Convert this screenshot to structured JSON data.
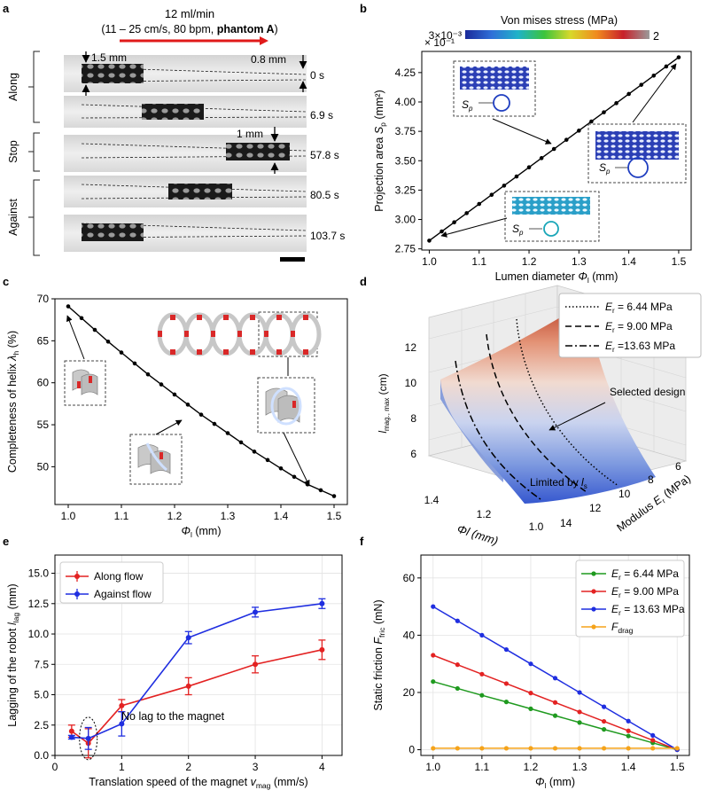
{
  "figure": {
    "panel_letters": [
      "a",
      "b",
      "c",
      "d",
      "e",
      "f"
    ]
  },
  "panel_a": {
    "flow_title": "12 ml/min",
    "flow_params_pre": "(11 – 25 cm/s, 80 bpm, ",
    "flow_params_bold": "phantom A",
    "flow_params_post": ")",
    "groups": [
      "Along",
      "Stop",
      "Against"
    ],
    "times": [
      "0 s",
      "6.9 s",
      "57.8 s",
      "80.5 s",
      "103.7 s"
    ],
    "annotations": [
      "1.5 mm",
      "0.8 mm",
      "1 mm"
    ]
  },
  "panel_b": {
    "colorbar_title": "Von mises stress (MPa)",
    "colorbar_min": "3×10⁻³",
    "colorbar_max": "2",
    "colorbar_colors": [
      "#1a2a9a",
      "#2f6fd8",
      "#1fb2c8",
      "#3cc43c",
      "#d8d82a",
      "#f08a1e",
      "#c8202a",
      "#9a9a9a"
    ],
    "inset_label": "S",
    "inset_sub": "p"
  },
  "panel_c": {
    "stent_colors": {
      "strut": "#c7c7c7",
      "joint": "#d92828"
    }
  },
  "panel_d": {
    "surface_colors": [
      "#b83b22",
      "#e39275",
      "#f1dad0",
      "#c9d3ef",
      "#7f9be0",
      "#3658cf"
    ],
    "legend": [
      {
        "label_pre": "E",
        "label_sub": "r",
        "label_post": " = 6.44 MPa",
        "dash": "dotted"
      },
      {
        "label_pre": "E",
        "label_sub": "r",
        "label_post": " = 9.00 MPa",
        "dash": "dashed"
      },
      {
        "label_pre": "E",
        "label_sub": "r",
        "label_post": " =13.63 MPa",
        "dash": "dashdot"
      }
    ],
    "zaxis_label_pre": "l",
    "zaxis_label_sub": "mag., max",
    "zaxis_unit": " (cm)",
    "xaxis_label": "Φl (mm)",
    "yaxis_label_pre": "Modulus ",
    "yaxis_label_e": "E",
    "yaxis_label_sub": "r",
    "yaxis_label_post": " (MPa)",
    "annotations": {
      "selected": "Selected design",
      "limited_pre": "Limited by ",
      "limited_l": "l",
      "limited_sub": "s"
    },
    "z_ticks": [
      "6",
      "8",
      "10",
      "12"
    ],
    "x_ticks": [
      "1.4",
      "1.2",
      "1.0"
    ],
    "y_ticks": [
      "14",
      "12",
      "10",
      "8",
      "6"
    ]
  },
  "chart_data": [
    {
      "panel": "b",
      "type": "line",
      "title": "",
      "xlabel_pre": "Lumen diameter ",
      "xlabel_sym": "Φ",
      "xlabel_sub": "l",
      "xlabel_post": " (mm)",
      "ylabel_pre": "Projection area ",
      "ylabel_sym": "S",
      "ylabel_sub": "p",
      "ylabel_post": " (mm²)",
      "scale_note": "× 10⁻¹",
      "xlim": [
        0.985,
        1.525
      ],
      "ylim": [
        2.74,
        4.43
      ],
      "xticks": [
        1.0,
        1.1,
        1.2,
        1.3,
        1.4,
        1.5
      ],
      "xtick_labels": [
        "1.0",
        "1.1",
        "1.2",
        "1.3",
        "1.4",
        "1.5"
      ],
      "yticks": [
        2.75,
        3.0,
        3.25,
        3.5,
        3.75,
        4.0,
        4.25
      ],
      "ytick_labels": [
        "2.75",
        "3.00",
        "3.25",
        "3.50",
        "3.75",
        "4.00",
        "4.25"
      ],
      "series": [
        {
          "name": "Projection area",
          "color": "#000000",
          "x": [
            1.0,
            1.025,
            1.05,
            1.075,
            1.1,
            1.125,
            1.15,
            1.175,
            1.2,
            1.225,
            1.25,
            1.275,
            1.3,
            1.325,
            1.35,
            1.375,
            1.4,
            1.425,
            1.45,
            1.475,
            1.5
          ],
          "y": [
            2.82,
            2.898,
            2.976,
            3.054,
            3.132,
            3.21,
            3.288,
            3.366,
            3.444,
            3.522,
            3.6,
            3.678,
            3.756,
            3.834,
            3.912,
            3.99,
            4.068,
            4.146,
            4.224,
            4.302,
            4.38
          ]
        }
      ]
    },
    {
      "panel": "c",
      "type": "line",
      "title": "",
      "xlabel_sym": "Φ",
      "xlabel_sub": "l",
      "xlabel_post": " (mm)",
      "ylabel_pre": "Completeness of helix ",
      "ylabel_sym": "λ",
      "ylabel_sub": "h",
      "ylabel_post": " (%)",
      "xlim": [
        0.975,
        1.525
      ],
      "ylim": [
        45.5,
        70.0
      ],
      "xticks": [
        1.0,
        1.1,
        1.2,
        1.3,
        1.4,
        1.5
      ],
      "xtick_labels": [
        "1.0",
        "1.1",
        "1.2",
        "1.3",
        "1.4",
        "1.5"
      ],
      "yticks": [
        50,
        55,
        60,
        65,
        70
      ],
      "ytick_labels": [
        "50",
        "55",
        "60",
        "65",
        "70"
      ],
      "series": [
        {
          "name": "Completeness",
          "color": "#000000",
          "x": [
            1.0,
            1.025,
            1.05,
            1.075,
            1.1,
            1.125,
            1.15,
            1.175,
            1.2,
            1.225,
            1.25,
            1.275,
            1.3,
            1.325,
            1.35,
            1.375,
            1.4,
            1.425,
            1.45,
            1.475,
            1.5
          ],
          "y": [
            69.1,
            67.7,
            66.3,
            64.9,
            63.6,
            62.3,
            61.0,
            59.8,
            58.6,
            57.4,
            56.2,
            55.1,
            54.0,
            52.9,
            51.8,
            50.8,
            49.8,
            48.8,
            47.9,
            47.2,
            46.5
          ]
        }
      ]
    },
    {
      "panel": "e",
      "type": "line",
      "title": "",
      "xlabel_pre": "Translation speed of the magnet ",
      "xlabel_sym": "v",
      "xlabel_sub": "mag",
      "xlabel_post": " (mm/s)",
      "ylabel_pre": "Lagging of the robot ",
      "ylabel_sym": "l",
      "ylabel_sub": "lag",
      "ylabel_post": " (mm)",
      "xlim": [
        0,
        4.3
      ],
      "ylim": [
        0,
        16.5
      ],
      "xticks": [
        0,
        1,
        2,
        3,
        4
      ],
      "xtick_labels": [
        "0",
        "1",
        "2",
        "3",
        "4"
      ],
      "yticks": [
        0,
        2.5,
        5,
        7.5,
        10,
        12.5,
        15
      ],
      "ytick_labels": [
        "0.0",
        "2.5",
        "5.0",
        "7.5",
        "10.0",
        "12.5",
        "15.0"
      ],
      "annotation": "No lag to the magnet",
      "series": [
        {
          "name": "Along flow",
          "color": "#e32222",
          "x": [
            0.25,
            0.5,
            1,
            2,
            3,
            4
          ],
          "y": [
            2.0,
            1.0,
            4.1,
            5.7,
            7.5,
            8.7
          ],
          "err": [
            0.5,
            1.2,
            0.5,
            0.7,
            0.7,
            0.8
          ]
        },
        {
          "name": "Against flow",
          "color": "#1f2ee0",
          "x": [
            0.25,
            0.5,
            1,
            2,
            3,
            4
          ],
          "y": [
            1.5,
            1.4,
            2.6,
            9.7,
            11.8,
            12.5
          ],
          "err": [
            0.15,
            0.9,
            1.0,
            0.5,
            0.4,
            0.4
          ]
        }
      ]
    },
    {
      "panel": "f",
      "type": "line",
      "title": "",
      "xlabel_sym": "Φ",
      "xlabel_sub": "l",
      "xlabel_post": " (mm)",
      "ylabel_pre": "Static friction ",
      "ylabel_sym": "F",
      "ylabel_sub": "fric",
      "ylabel_post": " (mN)",
      "xlim": [
        0.975,
        1.525
      ],
      "ylim": [
        -2,
        68
      ],
      "xticks": [
        1.0,
        1.1,
        1.2,
        1.3,
        1.4,
        1.5
      ],
      "xtick_labels": [
        "1.0",
        "1.1",
        "1.2",
        "1.3",
        "1.4",
        "1.5"
      ],
      "yticks": [
        0,
        20,
        40,
        60
      ],
      "ytick_labels": [
        "0",
        "20",
        "40",
        "60"
      ],
      "series": [
        {
          "name_pre": "E",
          "name_sub": "r",
          "name_post": " = 6.44 MPa",
          "color": "#1f9a1f",
          "x": [
            1.0,
            1.05,
            1.1,
            1.15,
            1.2,
            1.25,
            1.3,
            1.35,
            1.4,
            1.45,
            1.5
          ],
          "y": [
            23.8,
            21.4,
            19.0,
            16.7,
            14.3,
            11.9,
            9.5,
            7.1,
            4.8,
            2.4,
            0.0
          ]
        },
        {
          "name_pre": "E",
          "name_sub": "r",
          "name_post": " = 9.00 MPa",
          "color": "#e32222",
          "x": [
            1.0,
            1.05,
            1.1,
            1.15,
            1.2,
            1.25,
            1.3,
            1.35,
            1.4,
            1.45,
            1.5
          ],
          "y": [
            33.0,
            29.7,
            26.4,
            23.1,
            19.8,
            16.5,
            13.2,
            9.9,
            6.6,
            3.3,
            0.0
          ]
        },
        {
          "name_pre": "E",
          "name_sub": "r",
          "name_post": " = 13.63 MPa",
          "color": "#1f2ee0",
          "x": [
            1.0,
            1.05,
            1.1,
            1.15,
            1.2,
            1.25,
            1.3,
            1.35,
            1.4,
            1.45,
            1.5
          ],
          "y": [
            50.0,
            45.0,
            40.0,
            35.0,
            30.0,
            25.0,
            20.0,
            15.0,
            10.0,
            5.0,
            0.0
          ]
        },
        {
          "name_pre": "F",
          "name_sub": "drag",
          "name_post": "",
          "color": "#f5a31a",
          "x": [
            1.0,
            1.05,
            1.1,
            1.15,
            1.2,
            1.25,
            1.3,
            1.35,
            1.4,
            1.45,
            1.5
          ],
          "y": [
            0.5,
            0.5,
            0.5,
            0.5,
            0.5,
            0.5,
            0.5,
            0.5,
            0.5,
            0.5,
            0.5
          ]
        }
      ]
    }
  ]
}
